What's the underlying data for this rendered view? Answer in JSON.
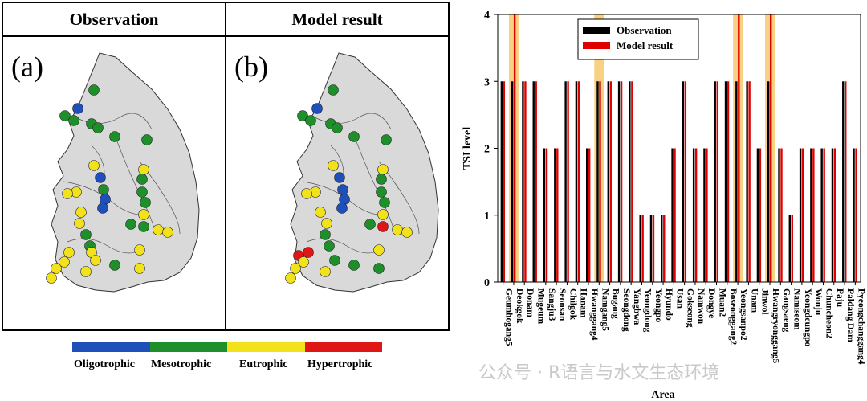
{
  "maps": {
    "left_title": "Observation",
    "right_title": "Model result",
    "left_letter": "(a)",
    "right_letter": "(b)"
  },
  "legend": {
    "items": [
      {
        "label": "Oligotrophic",
        "color": "#1f4fb8"
      },
      {
        "label": "Mesotrophic",
        "color": "#1e8f2a"
      },
      {
        "label": "Eutrophic",
        "color": "#f2e21c"
      },
      {
        "label": "Hypertrophic",
        "color": "#e01515"
      }
    ]
  },
  "watermark": "公众号 · R语言与水文生态环境",
  "chart_data": {
    "type": "bar",
    "xlabel": "Area",
    "ylabel": "TSI level",
    "ylim": [
      0,
      4
    ],
    "yticks": [
      0,
      1,
      2,
      3,
      4
    ],
    "grid": false,
    "legend_position": "top-center",
    "categories": [
      "Geumhogang5",
      "Deokgok",
      "Donam",
      "Mugeum",
      "Sangju3",
      "Seonsan",
      "Chilgok",
      "Hanam",
      "Hwanggang4",
      "Namgang5",
      "Bugang",
      "Seongdong",
      "Yangbwa",
      "Yeongdong",
      "Yeongpo",
      "Hyundo",
      "Usan",
      "Gokseong",
      "Namwon",
      "Dongye",
      "Muan2",
      "Boseonggang2",
      "Yeongsanpo2",
      "Unam",
      "Jinwol",
      "Hwangryonggang5",
      "Gangsaeng",
      "Namiseom",
      "Yeongdeungpo",
      "Wonju",
      "Chuncheon2",
      "Paju",
      "Paldang Dam",
      "Pyeongchanggang4"
    ],
    "series": [
      {
        "name": "Observation",
        "color": "#000000",
        "values": [
          3,
          3,
          3,
          3,
          2,
          2,
          3,
          3,
          2,
          3,
          3,
          3,
          3,
          1,
          1,
          1,
          2,
          3,
          2,
          2,
          3,
          3,
          3,
          3,
          2,
          3,
          2,
          1,
          2,
          2,
          2,
          2,
          3,
          2
        ]
      },
      {
        "name": "Model result",
        "color": "#e00000",
        "values": [
          3,
          4,
          3,
          3,
          2,
          2,
          3,
          3,
          2,
          3,
          3,
          3,
          3,
          1,
          1,
          1,
          2,
          3,
          2,
          2,
          3,
          3,
          4,
          3,
          2,
          4,
          2,
          1,
          2,
          2,
          2,
          2,
          3,
          2
        ]
      }
    ],
    "highlight_color": "#f5c15a",
    "highlight_categories": [
      "Deokgok",
      "Namgang5",
      "Yeongsanpo2",
      "Hwangryonggang5"
    ]
  }
}
